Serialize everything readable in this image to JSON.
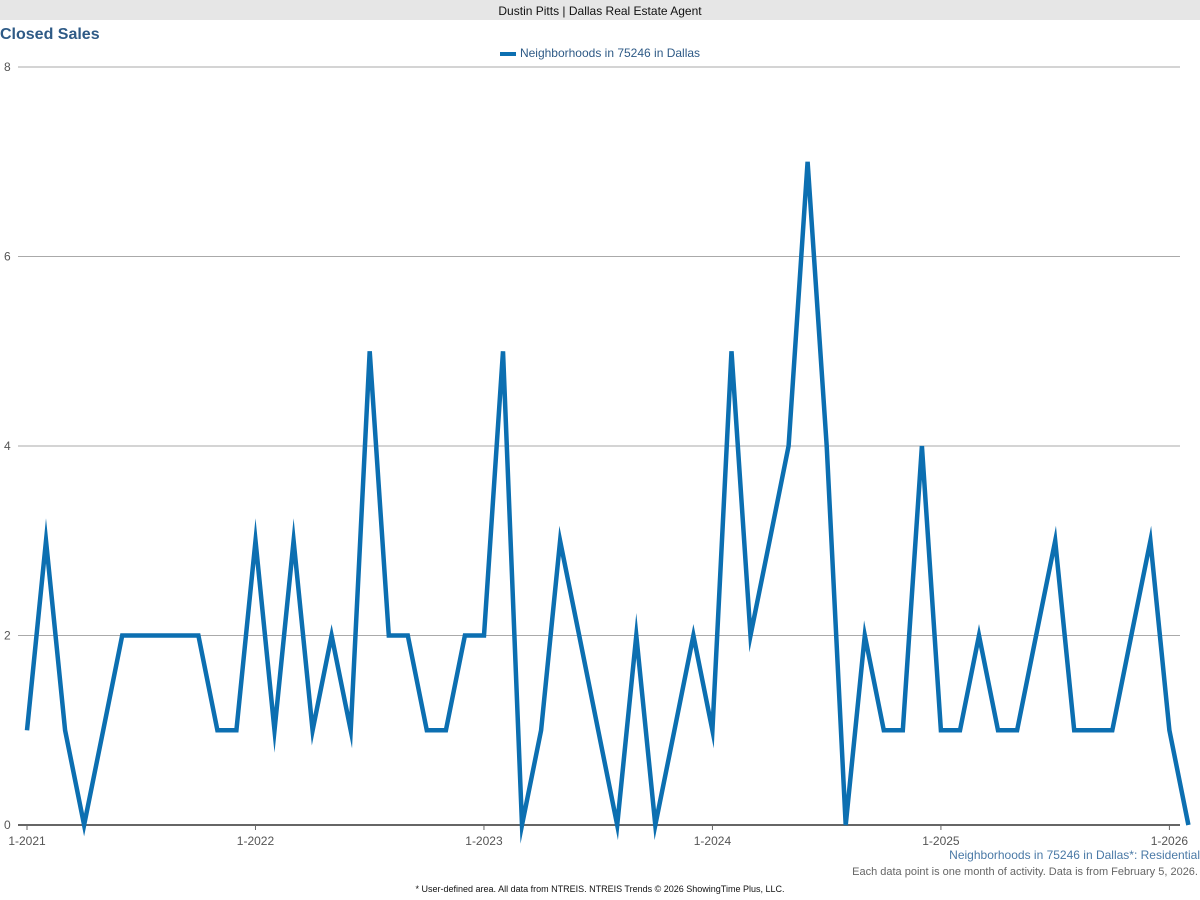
{
  "header": {
    "agent_banner": "Dustin Pitts | Dallas Real Estate Agent"
  },
  "colors": {
    "line": "#0c6fb1",
    "grid": "#aaaaaa",
    "title": "#2e5a86"
  },
  "chart_data": {
    "type": "line",
    "title": "Closed Sales",
    "series": [
      {
        "name": "Neighborhoods in 75246 in Dallas",
        "values": [
          1,
          3,
          1,
          0,
          1,
          2,
          2,
          2,
          2,
          2,
          1,
          1,
          3,
          1,
          3,
          1,
          2,
          1,
          5,
          2,
          2,
          1,
          1,
          2,
          2,
          5,
          0,
          1,
          3,
          2,
          1,
          0,
          2,
          0,
          1,
          2,
          1,
          5,
          2,
          3,
          4,
          7,
          4,
          0,
          2,
          1,
          1,
          4,
          1,
          1,
          2,
          1,
          1,
          2,
          3,
          1,
          1,
          1,
          2,
          3,
          1,
          0
        ]
      }
    ],
    "x_start": "1-2021",
    "x_ticks": [
      "1-2021",
      "1-2022",
      "1-2023",
      "1-2024",
      "1-2025",
      "1-2026"
    ],
    "y_ticks": [
      "0",
      "2",
      "4",
      "6",
      "8"
    ],
    "ylim": [
      0,
      8
    ],
    "grid": true,
    "legend_position": "top-center"
  },
  "footer": {
    "area_label": "Neighborhoods in 75246 in Dallas*: Residential",
    "data_note": "Each data point is one month of activity. Data is from February 5, 2026.",
    "source_note": "* User-defined area.  All data from NTREIS. NTREIS Trends © 2026 ShowingTime Plus, LLC."
  }
}
